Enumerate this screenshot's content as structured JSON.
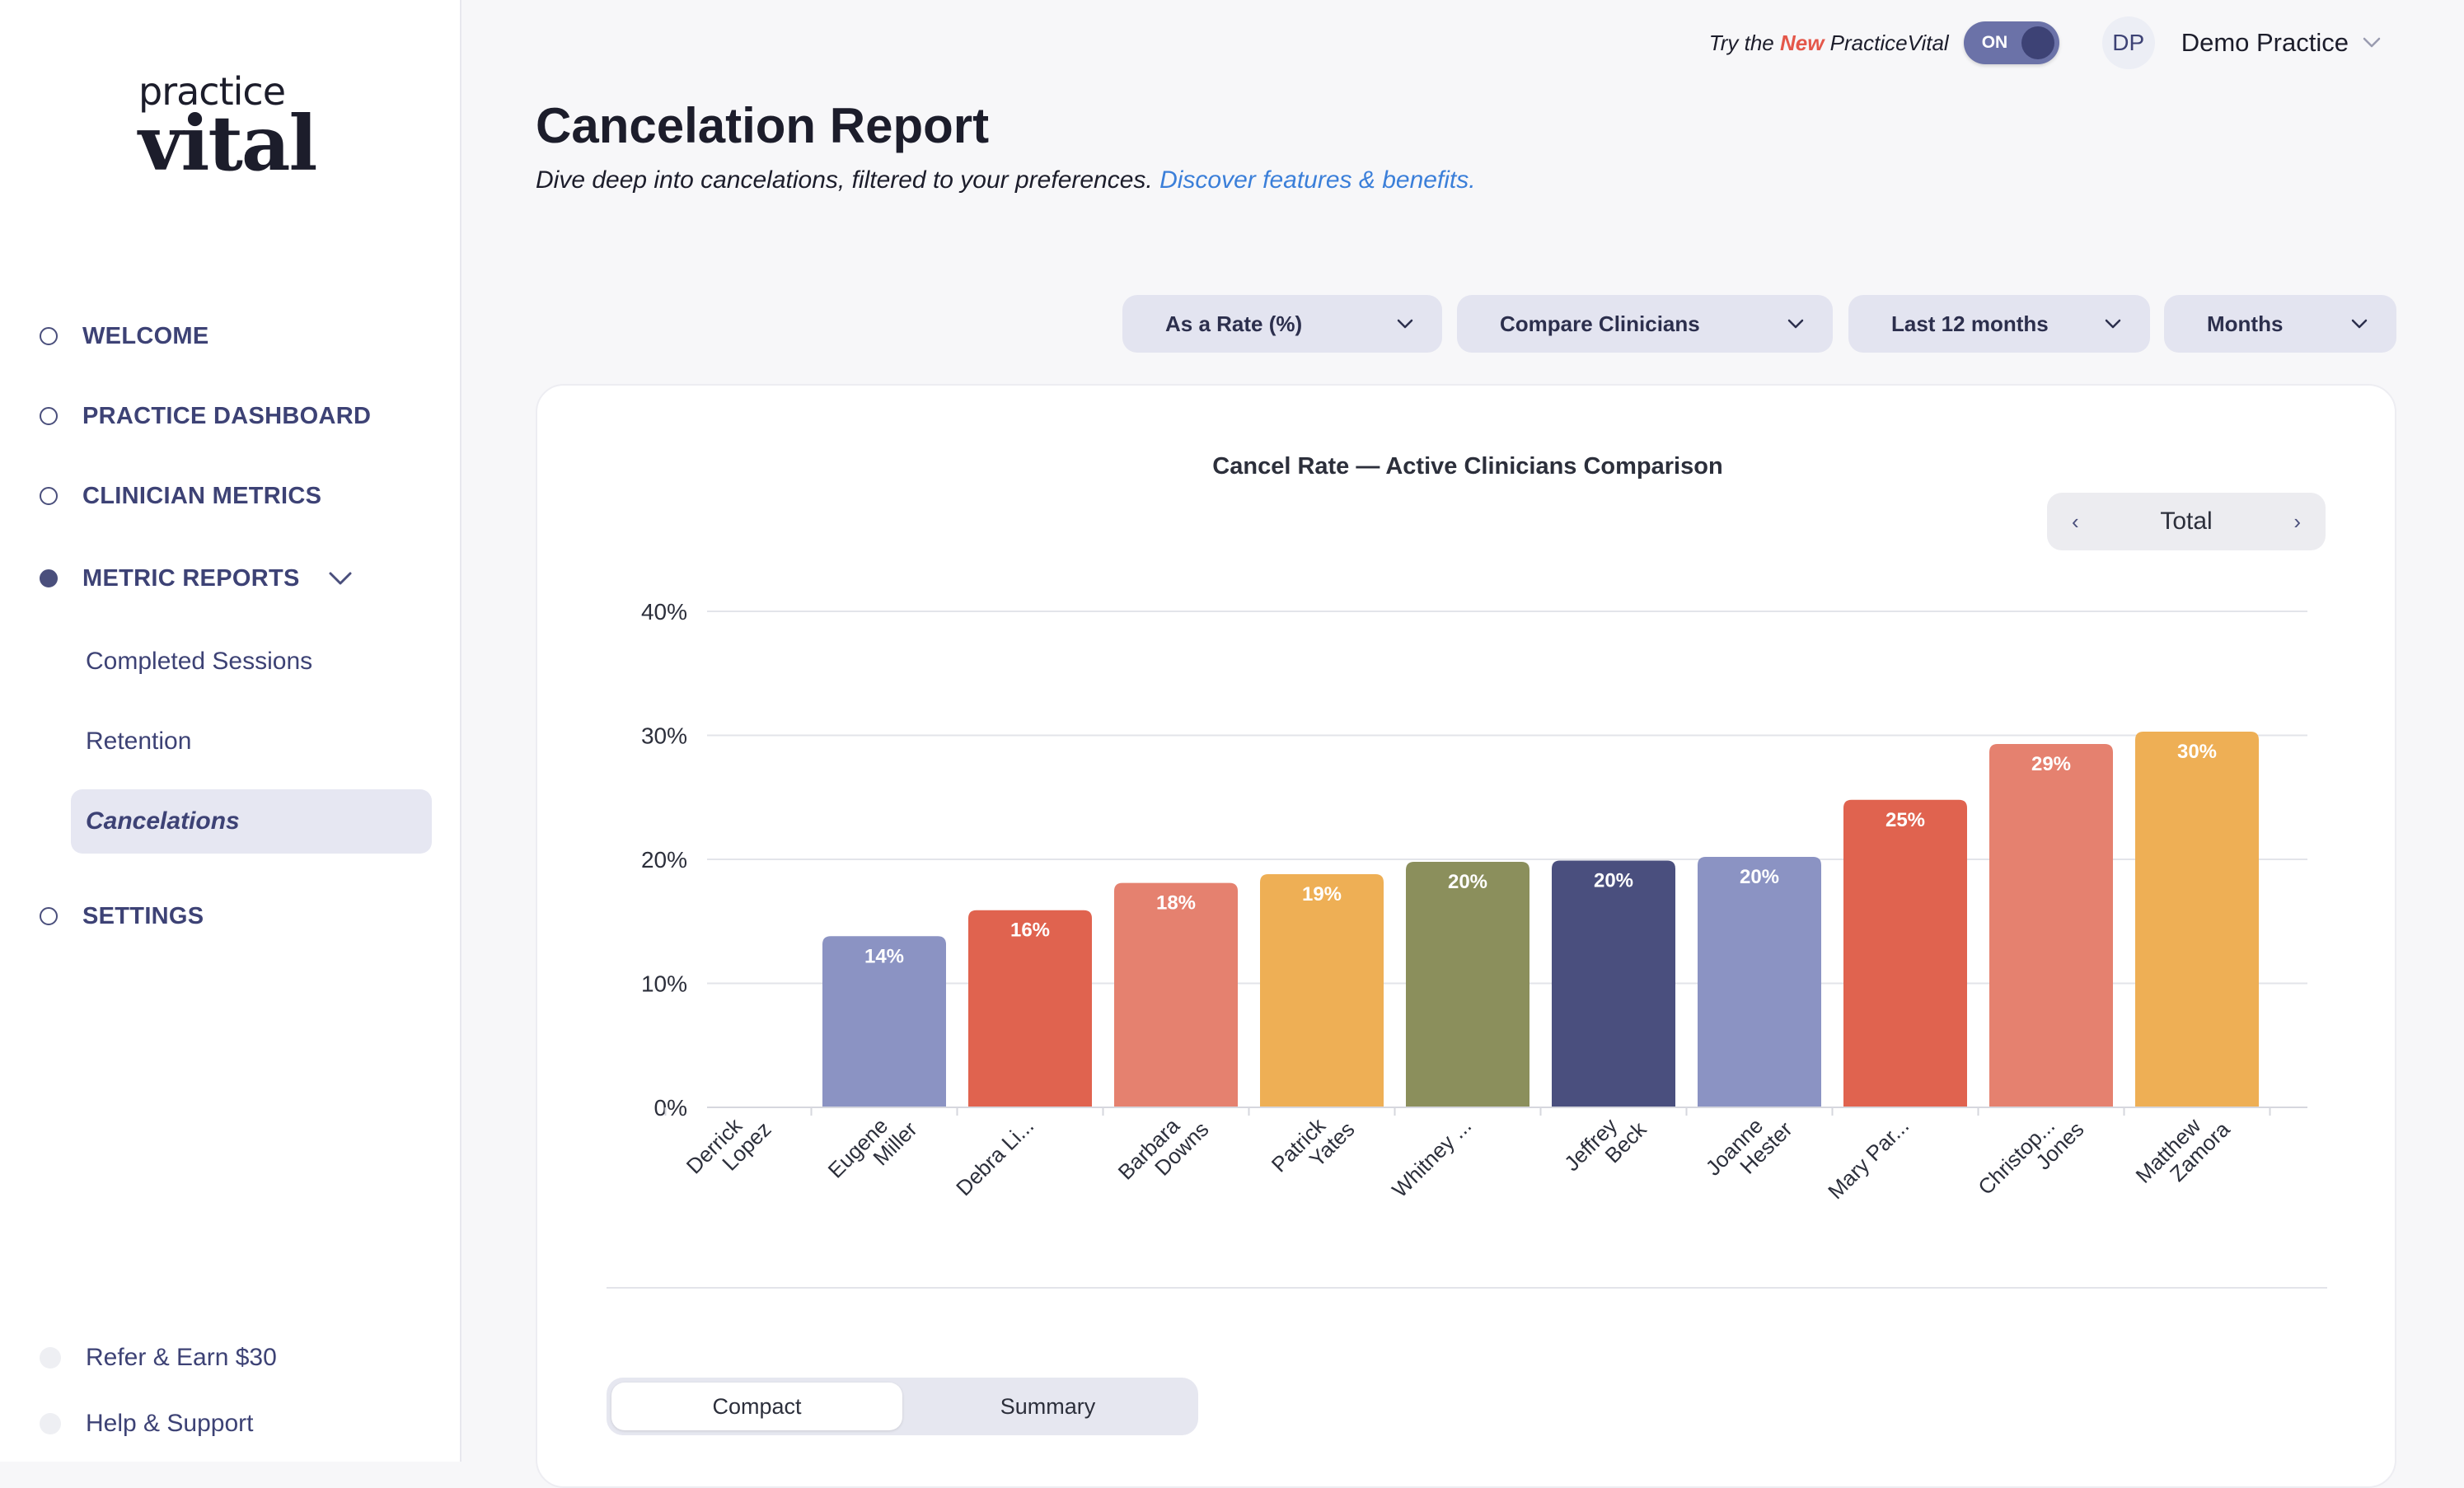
{
  "logo": {
    "line1": "practice",
    "line2": "vital"
  },
  "sidebar": {
    "items": [
      {
        "label": "WELCOME",
        "filled": false
      },
      {
        "label": "PRACTICE DASHBOARD",
        "filled": false
      },
      {
        "label": "CLINICIAN METRICS",
        "filled": false
      },
      {
        "label": "METRIC REPORTS",
        "filled": true
      },
      {
        "label": "SETTINGS",
        "filled": false
      }
    ],
    "sub_items": [
      {
        "label": "Completed Sessions",
        "active": false
      },
      {
        "label": "Retention",
        "active": false
      },
      {
        "label": "Cancelations",
        "active": true
      }
    ],
    "footer_items": [
      {
        "label": "Refer & Earn $30"
      },
      {
        "label": "Help & Support"
      }
    ]
  },
  "header": {
    "try_prefix": "Try the ",
    "try_new": "New",
    "try_suffix": " PracticeVital",
    "toggle_label": "ON",
    "avatar_initials": "DP",
    "practice_name": "Demo Practice"
  },
  "page": {
    "title": "Cancelation Report",
    "subtitle": "Dive deep into cancelations, filtered to your preferences. ",
    "subtitle_link": "Discover features & benefits."
  },
  "filters": {
    "rate": "As a Rate (%)",
    "compare": "Compare Clinicians",
    "range": "Last 12 months",
    "period": "Months"
  },
  "pager": {
    "prev": "‹",
    "label": "Total",
    "next": "›"
  },
  "view_toggle": {
    "compact": "Compact",
    "summary": "Summary"
  },
  "chart_data": {
    "type": "bar",
    "title": "Cancel Rate — Active Clinicians Comparison",
    "categories": [
      [
        "Derrick",
        "Lopez"
      ],
      [
        "Eugene",
        "Miller"
      ],
      [
        "Debra Li..."
      ],
      [
        "Barbara",
        "Downs"
      ],
      [
        "Patrick",
        "Yates"
      ],
      [
        "Whitney ..."
      ],
      [
        "Jeffrey",
        "Beck"
      ],
      [
        "Joanne",
        "Hester"
      ],
      [
        "Mary Par..."
      ],
      [
        "Christop...",
        "Jones"
      ],
      [
        "Matthew",
        "Zamora"
      ]
    ],
    "values": [
      0,
      13.8,
      15.9,
      18.1,
      18.8,
      19.8,
      19.9,
      20.2,
      24.8,
      29.3,
      30.3
    ],
    "labels": [
      "",
      "14%",
      "16%",
      "18%",
      "19%",
      "20%",
      "20%",
      "20%",
      "25%",
      "29%",
      "30%"
    ],
    "colors": [
      "#8b93c3",
      "#8b93c3",
      "#e0634f",
      "#e5816f",
      "#eeaf55",
      "#8b8f5c",
      "#4a4f7e",
      "#8b93c3",
      "#e0634f",
      "#e5816f",
      "#eeaf55"
    ],
    "yticks": [
      "0%",
      "10%",
      "20%",
      "30%",
      "40%"
    ],
    "ylim": [
      0,
      40
    ],
    "xlabel": "",
    "ylabel": ""
  }
}
